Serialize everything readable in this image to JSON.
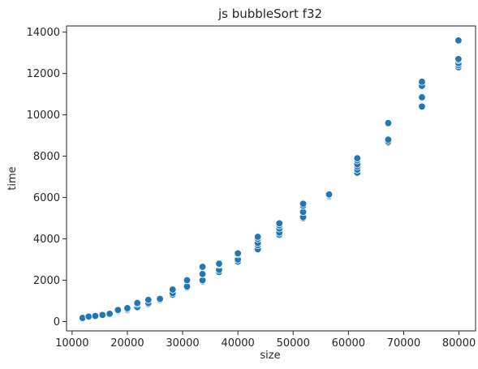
{
  "chart_data": {
    "type": "scatter",
    "title": "js bubbleSort f32",
    "xlabel": "size",
    "ylabel": "time",
    "xlim": [
      9000,
      83000
    ],
    "ylim": [
      -450,
      14300
    ],
    "x_ticks": [
      10000,
      20000,
      30000,
      40000,
      50000,
      60000,
      70000,
      80000
    ],
    "y_ticks": [
      0,
      2000,
      4000,
      6000,
      8000,
      10000,
      12000,
      14000
    ],
    "grid": false,
    "legend": "none",
    "marker_color": "#1f77b4",
    "points": [
      {
        "x": 11900,
        "y": 150
      },
      {
        "x": 11900,
        "y": 160
      },
      {
        "x": 11900,
        "y": 175
      },
      {
        "x": 13000,
        "y": 200
      },
      {
        "x": 13000,
        "y": 220
      },
      {
        "x": 13000,
        "y": 240
      },
      {
        "x": 14200,
        "y": 250
      },
      {
        "x": 14200,
        "y": 270
      },
      {
        "x": 15500,
        "y": 300
      },
      {
        "x": 15500,
        "y": 320
      },
      {
        "x": 16800,
        "y": 350
      },
      {
        "x": 16800,
        "y": 380
      },
      {
        "x": 18300,
        "y": 480
      },
      {
        "x": 18300,
        "y": 520
      },
      {
        "x": 18300,
        "y": 560
      },
      {
        "x": 20000,
        "y": 550
      },
      {
        "x": 20000,
        "y": 600
      },
      {
        "x": 20000,
        "y": 650
      },
      {
        "x": 21800,
        "y": 700
      },
      {
        "x": 21800,
        "y": 850
      },
      {
        "x": 21800,
        "y": 900
      },
      {
        "x": 23800,
        "y": 850
      },
      {
        "x": 23800,
        "y": 900
      },
      {
        "x": 23800,
        "y": 1050
      },
      {
        "x": 25900,
        "y": 1050
      },
      {
        "x": 25900,
        "y": 1100
      },
      {
        "x": 28200,
        "y": 1300
      },
      {
        "x": 28200,
        "y": 1380
      },
      {
        "x": 28200,
        "y": 1550
      },
      {
        "x": 30800,
        "y": 1650
      },
      {
        "x": 30800,
        "y": 1700
      },
      {
        "x": 30800,
        "y": 2000
      },
      {
        "x": 33600,
        "y": 1950
      },
      {
        "x": 33600,
        "y": 2000
      },
      {
        "x": 33600,
        "y": 2300
      },
      {
        "x": 33600,
        "y": 2650
      },
      {
        "x": 36600,
        "y": 2400
      },
      {
        "x": 36600,
        "y": 2500
      },
      {
        "x": 36600,
        "y": 2750
      },
      {
        "x": 36600,
        "y": 2800
      },
      {
        "x": 40000,
        "y": 2900
      },
      {
        "x": 40000,
        "y": 3000
      },
      {
        "x": 40000,
        "y": 3250
      },
      {
        "x": 40000,
        "y": 3300
      },
      {
        "x": 43600,
        "y": 3500
      },
      {
        "x": 43600,
        "y": 3700
      },
      {
        "x": 43600,
        "y": 3800
      },
      {
        "x": 43600,
        "y": 4000
      },
      {
        "x": 43600,
        "y": 4100
      },
      {
        "x": 47500,
        "y": 4200
      },
      {
        "x": 47500,
        "y": 4300
      },
      {
        "x": 47500,
        "y": 4500
      },
      {
        "x": 47500,
        "y": 4650
      },
      {
        "x": 47500,
        "y": 4750
      },
      {
        "x": 51800,
        "y": 5000
      },
      {
        "x": 51800,
        "y": 5050
      },
      {
        "x": 51800,
        "y": 5300
      },
      {
        "x": 51800,
        "y": 5600
      },
      {
        "x": 51800,
        "y": 5700
      },
      {
        "x": 56500,
        "y": 6050
      },
      {
        "x": 56500,
        "y": 6100
      },
      {
        "x": 56500,
        "y": 6150
      },
      {
        "x": 61600,
        "y": 7200
      },
      {
        "x": 61600,
        "y": 7350
      },
      {
        "x": 61600,
        "y": 7500
      },
      {
        "x": 61600,
        "y": 7600
      },
      {
        "x": 61600,
        "y": 7800
      },
      {
        "x": 61600,
        "y": 7900
      },
      {
        "x": 67200,
        "y": 8650
      },
      {
        "x": 67200,
        "y": 8700
      },
      {
        "x": 67200,
        "y": 8800
      },
      {
        "x": 67200,
        "y": 9600
      },
      {
        "x": 73300,
        "y": 10400
      },
      {
        "x": 73300,
        "y": 10850
      },
      {
        "x": 73300,
        "y": 11400
      },
      {
        "x": 73300,
        "y": 11600
      },
      {
        "x": 79900,
        "y": 12300
      },
      {
        "x": 79900,
        "y": 12400
      },
      {
        "x": 79900,
        "y": 12500
      },
      {
        "x": 79900,
        "y": 12650
      },
      {
        "x": 79900,
        "y": 12700
      },
      {
        "x": 79900,
        "y": 13600
      }
    ]
  }
}
